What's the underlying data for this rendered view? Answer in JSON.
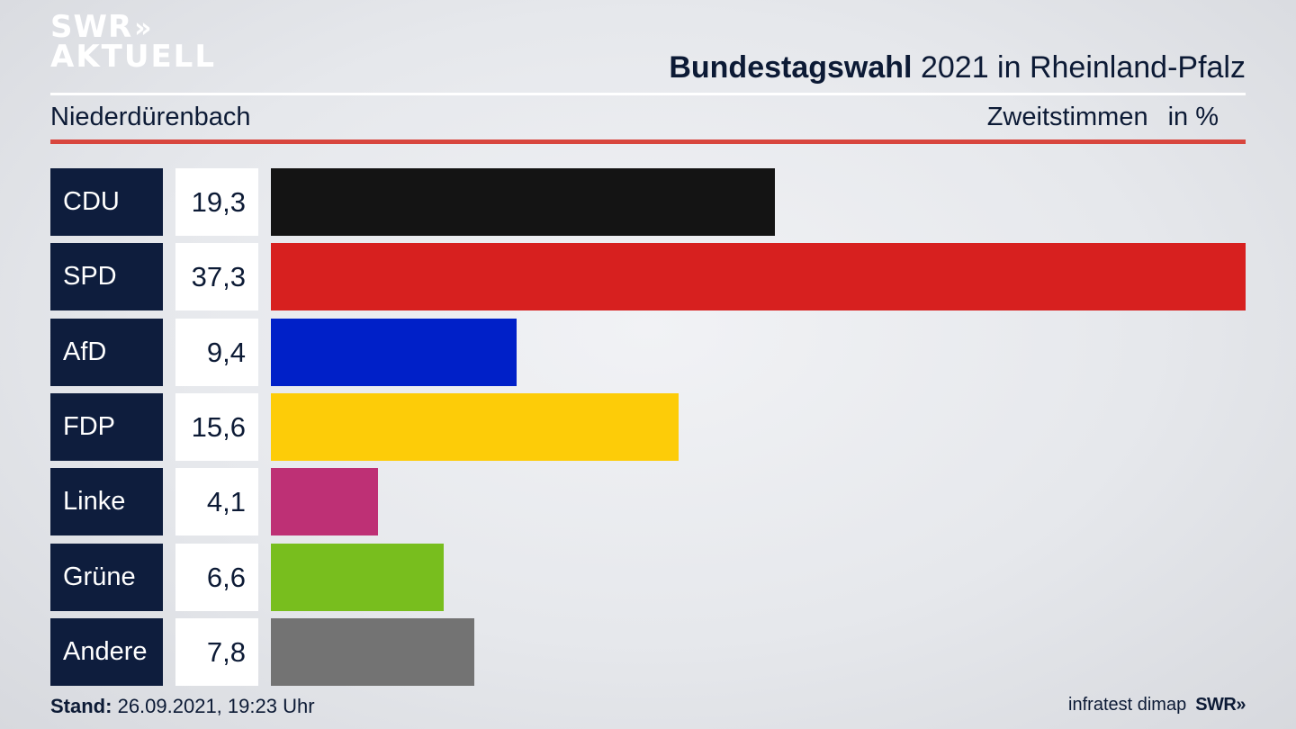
{
  "logo": {
    "line1": "SWR",
    "line2": "AKTUELL",
    "chevrons": "»"
  },
  "header": {
    "title_bold": "Bundestagswahl",
    "title_rest": "2021 in Rheinland-Pfalz",
    "location": "Niederdürenbach",
    "metric": "Zweitstimmen",
    "unit": "in %"
  },
  "chart_data": {
    "type": "bar",
    "orientation": "horizontal",
    "categories": [
      "CDU",
      "SPD",
      "AfD",
      "FDP",
      "Linke",
      "Grüne",
      "Andere"
    ],
    "values": [
      19.3,
      37.3,
      9.4,
      15.6,
      4.1,
      6.6,
      7.8
    ],
    "value_labels": [
      "19,3",
      "37,3",
      "9,4",
      "15,6",
      "4,1",
      "6,6",
      "7,8"
    ],
    "colors": [
      "#141414",
      "#d7201f",
      "#0020c8",
      "#fdcc08",
      "#be3075",
      "#78be1e",
      "#737373"
    ],
    "xlim": [
      0,
      37.3
    ]
  },
  "footer": {
    "stand_label": "Stand:",
    "stand_value": "26.09.2021, 19:23 Uhr",
    "source": "infratest dimap",
    "brand": "SWR»"
  }
}
